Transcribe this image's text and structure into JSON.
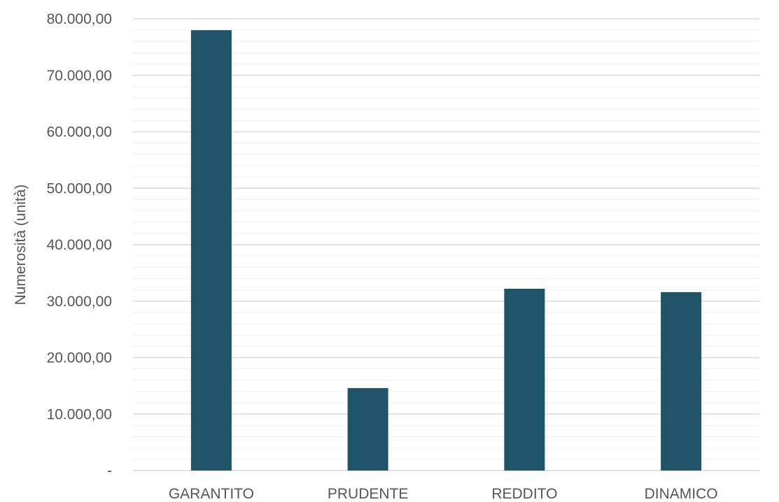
{
  "chart_data": {
    "type": "bar",
    "title": "",
    "xlabel": "",
    "ylabel": "Numerosità (unità)",
    "categories": [
      "GARANTITO",
      "PRUDENTE",
      "REDDITO",
      "DINAMICO"
    ],
    "values": [
      78000,
      14600,
      32200,
      31600
    ],
    "ylim": [
      0,
      80000
    ],
    "y_ticks": [
      0,
      10000,
      20000,
      30000,
      40000,
      50000,
      60000,
      70000,
      80000
    ],
    "y_tick_labels": [
      "-",
      "10.000,00",
      "20.000,00",
      "30.000,00",
      "40.000,00",
      "50.000,00",
      "60.000,00",
      "70.000,00",
      "80.000,00"
    ],
    "minor_grid_step": 2000,
    "grid": true,
    "legend": "none",
    "bar_color": "#1f5468"
  }
}
